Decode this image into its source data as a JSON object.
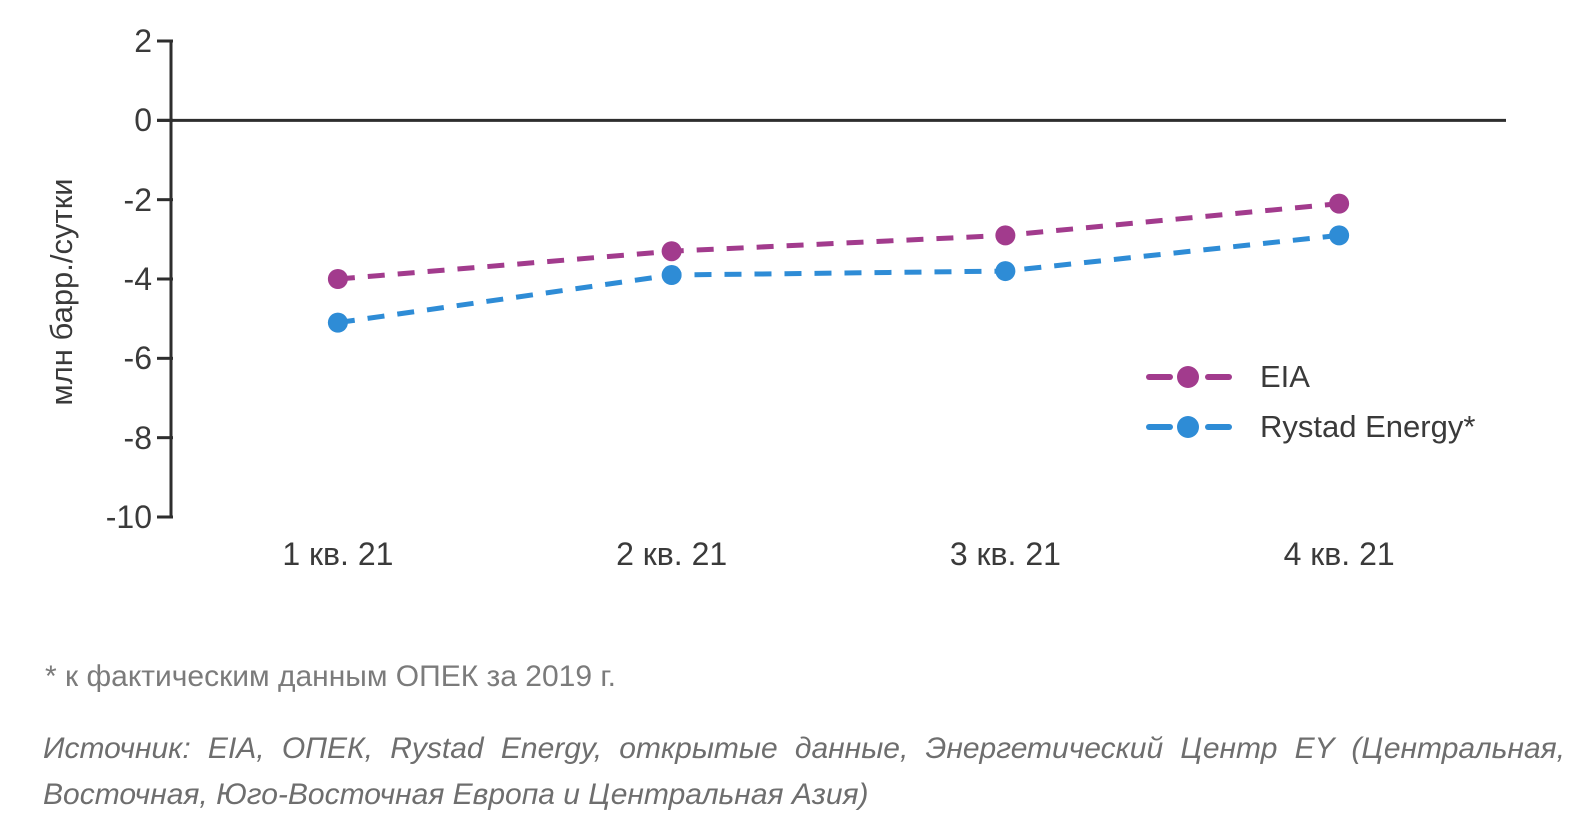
{
  "chart_data": {
    "type": "line",
    "title": "",
    "ylabel": "млн барр./сутки",
    "xlabel": "",
    "categories": [
      "1 кв. 21",
      "2 кв. 21",
      "3 кв. 21",
      "4 кв. 21"
    ],
    "series": [
      {
        "name": "EIA",
        "color": "#A23B8D",
        "style": "dashed",
        "values": [
          -4.0,
          -3.3,
          -2.9,
          -2.1
        ]
      },
      {
        "name": "Rystad Energy*",
        "color": "#2E8CD6",
        "style": "dashed",
        "values": [
          -5.1,
          -3.9,
          -3.8,
          -2.9
        ]
      }
    ],
    "ylim": [
      -10,
      2
    ],
    "yticks": [
      2,
      0,
      -2,
      -4,
      -6,
      -8,
      -10
    ],
    "baseline": 0,
    "grid": false,
    "legend_position": "middle-right",
    "axis_color": "#2e2e2e"
  },
  "footnote": "* к фактическим данным ОПЕК за 2019 г.",
  "source_lines": [
    "Источник: EIA, ОПЕК, Rystad Energy, открытые данные, Энергетический Центр EY (Центральная,",
    "Восточная, Юго-Восточная Европа и Центральная Азия)"
  ]
}
